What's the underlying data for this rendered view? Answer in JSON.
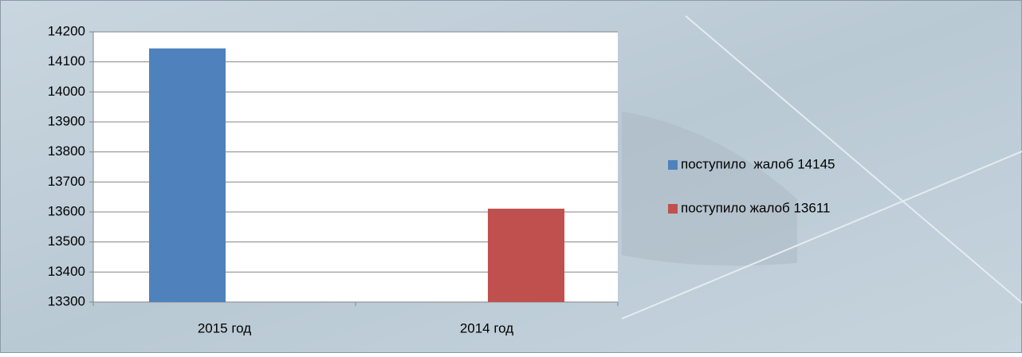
{
  "chart_data": {
    "type": "bar",
    "categories": [
      "2015 год",
      "2014 год"
    ],
    "series": [
      {
        "name": "поступило  жалоб 14145",
        "color": "#4f81bd",
        "values": [
          14145,
          null
        ]
      },
      {
        "name": "поступило жалоб 13611",
        "color": "#c0504d",
        "values": [
          null,
          13611
        ]
      }
    ],
    "ylim": [
      13300,
      14200
    ],
    "yticks": [
      13300,
      13400,
      13500,
      13600,
      13700,
      13800,
      13900,
      14000,
      14100,
      14200
    ],
    "grid": true,
    "legend": "right"
  }
}
